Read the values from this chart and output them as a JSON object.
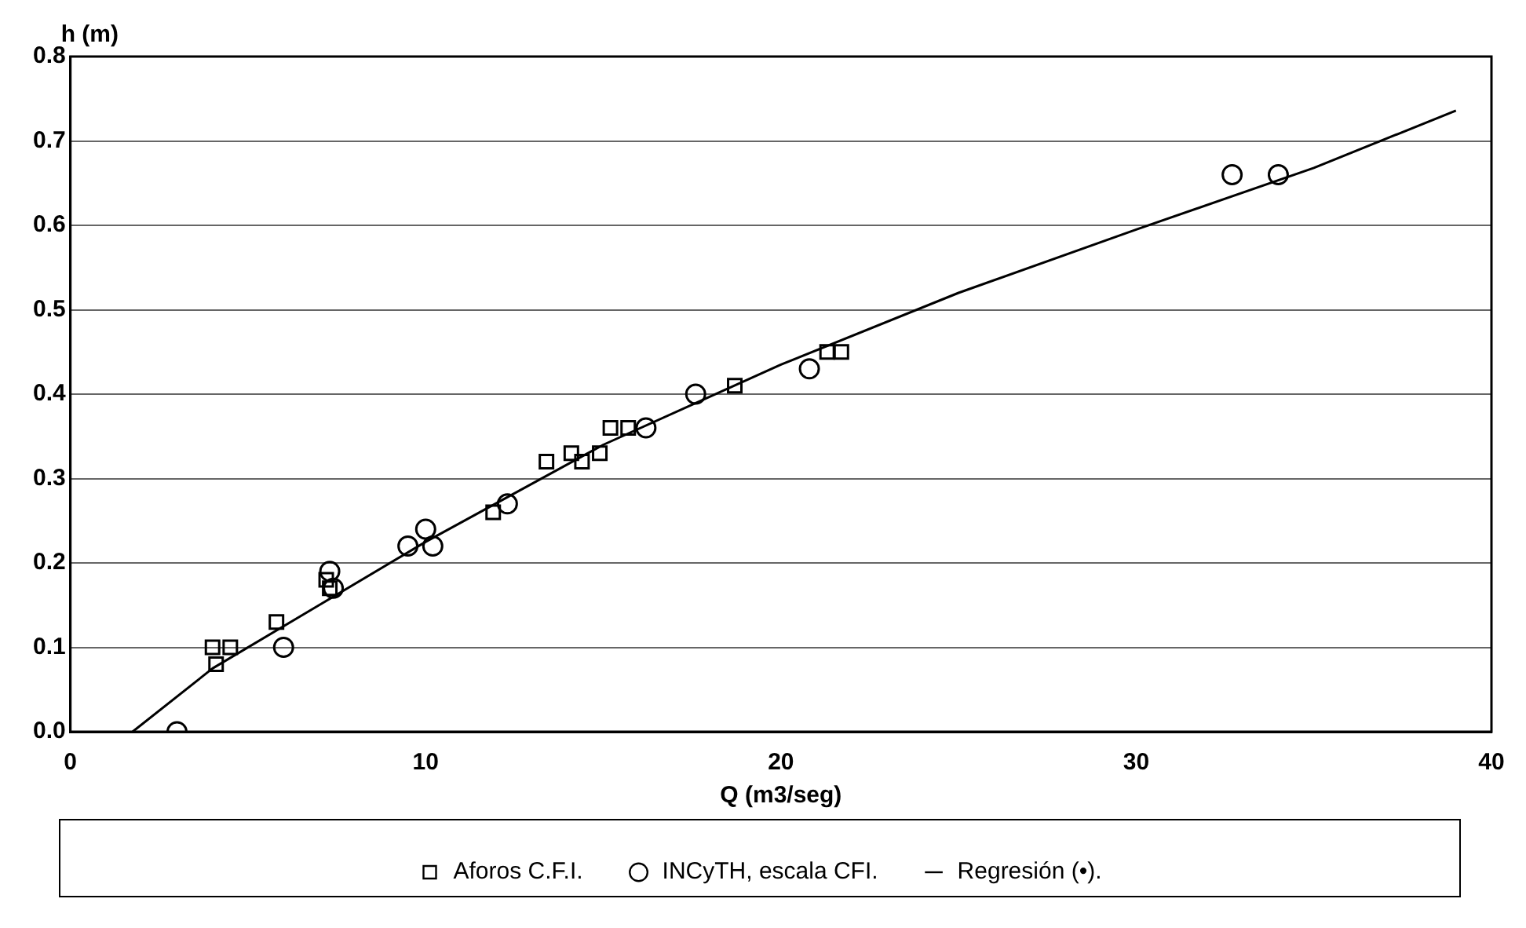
{
  "chart_data": {
    "type": "scatter",
    "xlabel": "Q (m3/seg)",
    "ylabel": "h (m)",
    "xlim": [
      0,
      40
    ],
    "xticks": [
      0,
      10,
      20,
      30,
      40
    ],
    "ylim": [
      0,
      0.8
    ],
    "yticks": [
      {
        "value": 0,
        "label": "0.0"
      },
      0.1,
      0.2,
      0.3,
      0.4,
      0.5,
      0.6,
      0.7,
      0.8
    ],
    "grid": "y",
    "legend": "bottom",
    "series": [
      {
        "name": "Aforos C.F.I.",
        "color": "#000000",
        "marker": "square",
        "x": [
          4.0,
          4.1,
          4.5,
          5.8,
          7.2,
          7.3,
          11.9,
          13.4,
          14.1,
          14.4,
          14.9,
          15.2,
          15.7,
          18.7,
          21.3,
          21.7
        ],
        "values": [
          0.1,
          0.08,
          0.1,
          0.13,
          0.18,
          0.17,
          0.26,
          0.32,
          0.33,
          0.32,
          0.33,
          0.36,
          0.36,
          0.41,
          0.45,
          0.45
        ]
      },
      {
        "name": "INCyTH, escala CFI.",
        "color": "#000000",
        "marker": "circle",
        "x": [
          3.0,
          6.0,
          7.3,
          7.4,
          9.5,
          10.0,
          10.2,
          12.3,
          16.2,
          17.6,
          20.8,
          32.7,
          34.0
        ],
        "values": [
          0.0,
          0.1,
          0.19,
          0.17,
          0.22,
          0.24,
          0.22,
          0.27,
          0.36,
          0.4,
          0.43,
          0.66,
          0.66
        ]
      },
      {
        "name": "Regresión (•).",
        "type": "line",
        "color": "#000000",
        "marker": "none",
        "x": [
          1.75,
          4,
          7,
          10,
          15,
          20,
          25,
          30,
          35,
          39
        ],
        "values": [
          0,
          0.075,
          0.15,
          0.225,
          0.34,
          0.435,
          0.52,
          0.595,
          0.668,
          0.736
        ]
      }
    ]
  }
}
